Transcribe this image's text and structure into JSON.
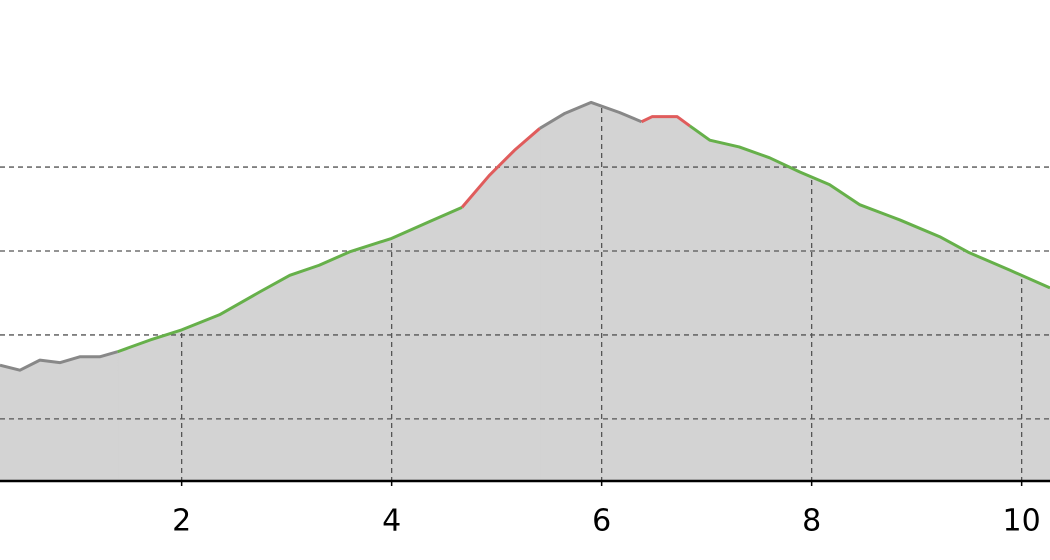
{
  "chart_data": {
    "type": "area",
    "xlim": [
      0.27,
      10.27
    ],
    "xticks": [
      2,
      4,
      6,
      8,
      10
    ],
    "ylim": [
      26,
      599
    ],
    "yticks": [
      100,
      200,
      300,
      400
    ],
    "grid": true,
    "fill": "#d3d3d3",
    "series": [
      {
        "color": "#888888",
        "x": [
          0.27,
          0.46,
          0.65,
          0.84,
          1.03,
          1.22,
          1.39
        ],
        "values": [
          164,
          158,
          170,
          167,
          174,
          174,
          180
        ]
      },
      {
        "color": "#66b04a",
        "x": [
          1.39,
          1.7,
          2.0,
          2.36,
          2.74,
          3.03,
          3.31,
          3.6,
          4.0,
          4.36,
          4.67
        ],
        "values": [
          180,
          194,
          206,
          224,
          251,
          271,
          283,
          299,
          315,
          335,
          352
        ]
      },
      {
        "color": "#e05c5c",
        "x": [
          4.67,
          4.93,
          5.17,
          5.41
        ],
        "values": [
          352,
          390,
          420,
          446
        ]
      },
      {
        "color": "#888888",
        "x": [
          5.41,
          5.65,
          5.9,
          6.17,
          6.38
        ],
        "values": [
          446,
          464,
          477,
          465,
          454
        ]
      },
      {
        "color": "#e05c5c",
        "x": [
          6.38,
          6.48,
          6.72,
          6.84
        ],
        "values": [
          454,
          460,
          460,
          449
        ]
      },
      {
        "color": "#66b04a",
        "x": [
          6.84,
          7.03,
          7.31,
          7.6,
          7.89,
          8.17,
          8.46,
          8.84,
          9.22,
          9.5,
          9.89,
          10.27
        ],
        "values": [
          449,
          432,
          424,
          411,
          394,
          379,
          355,
          337,
          317,
          298,
          277,
          256
        ]
      }
    ]
  }
}
